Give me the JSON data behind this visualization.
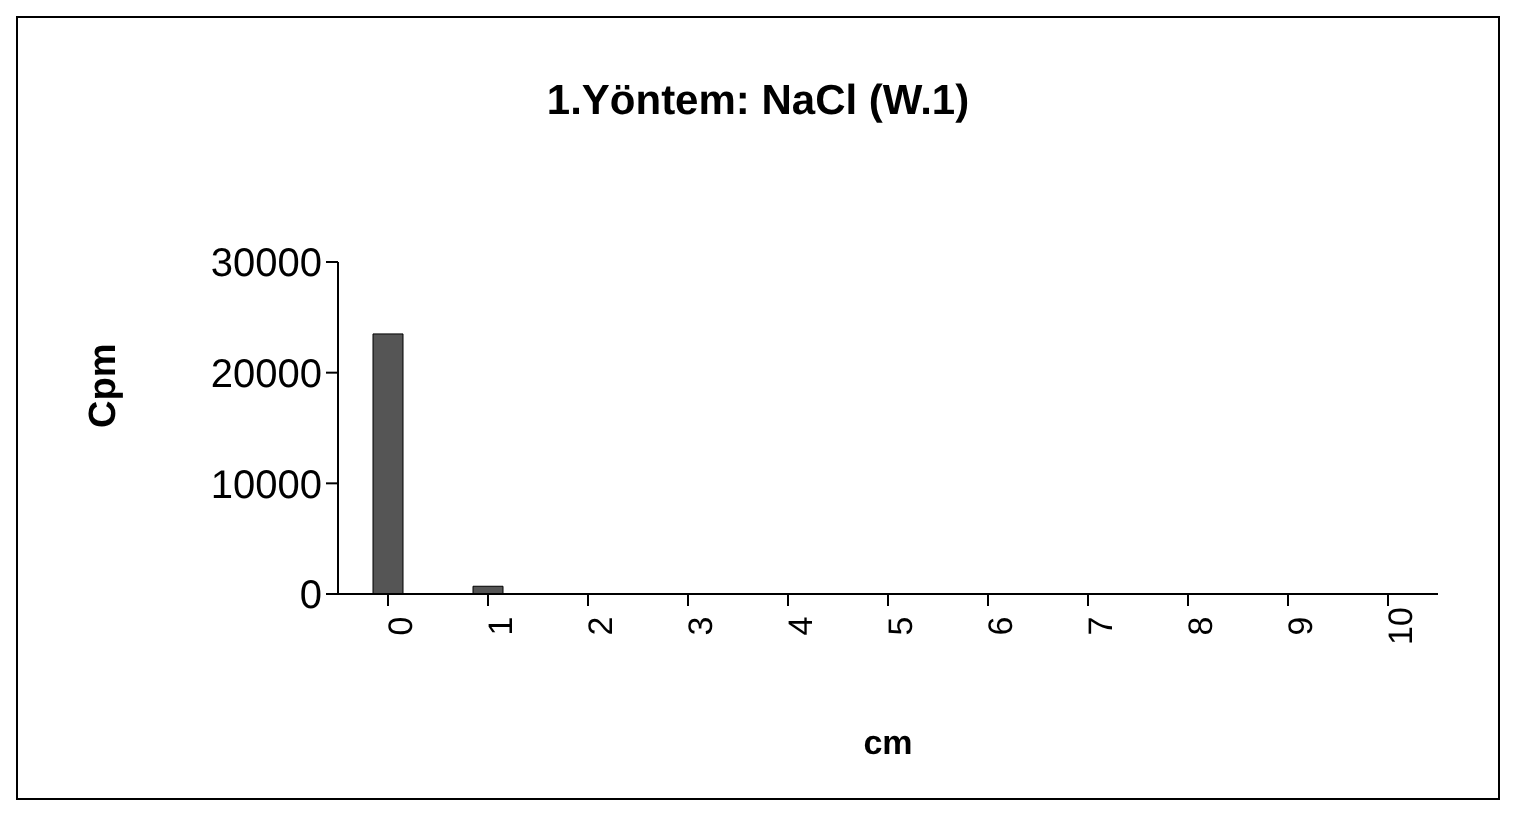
{
  "chart_data": {
    "type": "bar",
    "title": "1.Yöntem: NaCl (W.1)",
    "xlabel": "cm",
    "ylabel": "Cpm",
    "categories": [
      "0",
      "1",
      "2",
      "3",
      "4",
      "5",
      "6",
      "7",
      "8",
      "9",
      "10"
    ],
    "values": [
      23500,
      700,
      0,
      0,
      0,
      0,
      0,
      0,
      0,
      0,
      0
    ],
    "color": "#555555",
    "ylim": [
      0,
      30000
    ],
    "yticks": [
      0,
      10000,
      20000,
      30000
    ],
    "grid": false,
    "legend": false
  }
}
